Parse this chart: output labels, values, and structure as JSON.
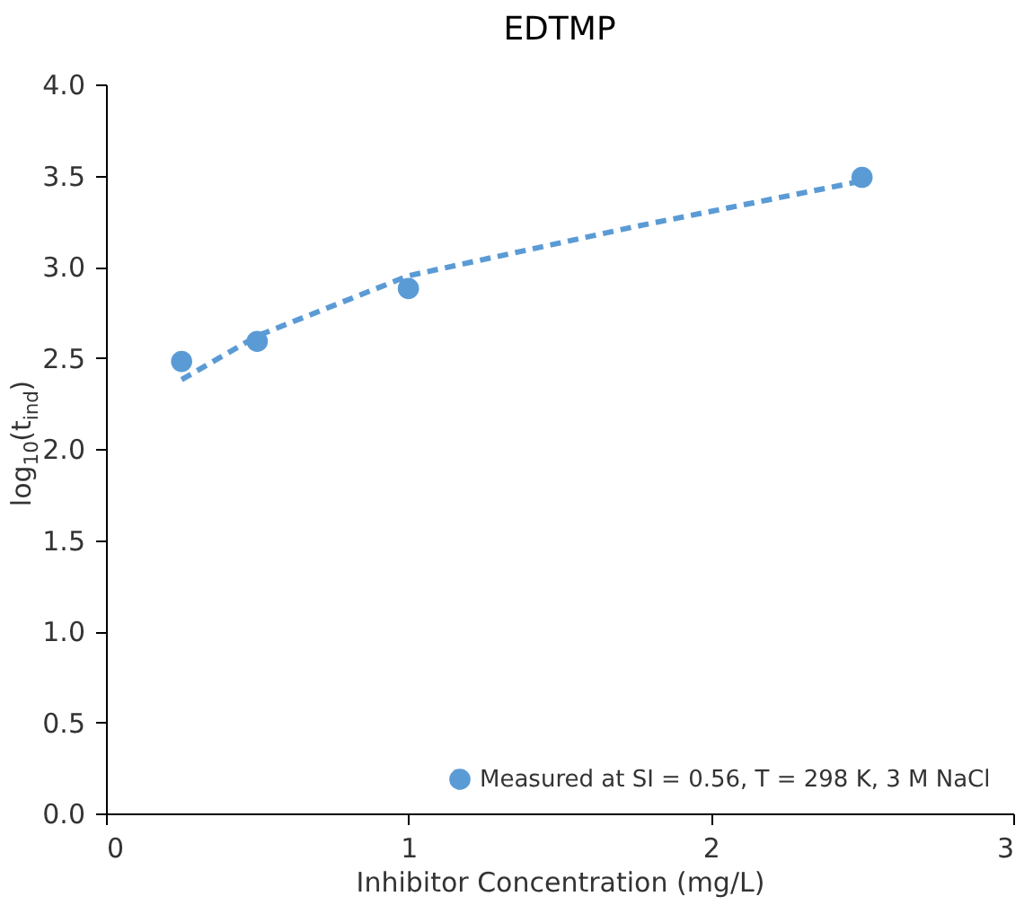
{
  "chart_data": {
    "type": "scatter",
    "title": "EDTMP",
    "xlabel": "Inhibitor Concentration (mg/L)",
    "ylabel": "log$_{10}$(t$_{ind}$)",
    "xlim": [
      0,
      3
    ],
    "xticks": [
      0,
      1,
      2,
      3
    ],
    "ylim": [
      0,
      4
    ],
    "yticks": [
      {
        "value": 0,
        "label": "0.0"
      },
      0.5,
      {
        "value": 1,
        "label": "1.0"
      },
      1.5,
      {
        "value": 2,
        "label": "2.0"
      },
      2.5,
      {
        "value": 3,
        "label": "3.0"
      },
      3.5,
      {
        "value": 4,
        "label": "4.0"
      }
    ],
    "grid": false,
    "legend": "bottom right",
    "marker": "circle",
    "series": [
      {
        "name": "Measured at SI = 0.56, T = 298 K, 3 M NaCl",
        "color": "#5b9bd5",
        "x": [
          0.25,
          0.5,
          1,
          2.5
        ],
        "values": [
          2.48,
          2.59,
          2.88,
          3.49
        ]
      },
      {
        "type": "line",
        "line_style": "dashed",
        "marker": "none",
        "color": "#5b9bd5",
        "x": [
          0.25,
          0.5,
          1,
          1.75,
          2.5
        ],
        "values": [
          2.38,
          2.62,
          2.95,
          3.22,
          3.47
        ]
      }
    ]
  }
}
